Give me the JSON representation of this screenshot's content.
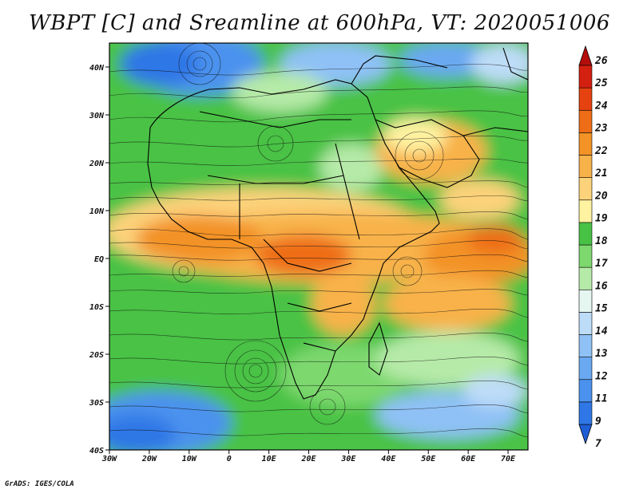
{
  "title": "WBPT [C] and Sreamline at 600hPa, VT: 2020051006",
  "credit": "GrADS: IGES/COLA",
  "map": {
    "lon_range": [
      -30,
      75
    ],
    "lat_range": [
      -40,
      45
    ],
    "lon_ticks": [
      {
        "value": -30,
        "label": "30W"
      },
      {
        "value": -20,
        "label": "20W"
      },
      {
        "value": -10,
        "label": "10W"
      },
      {
        "value": 0,
        "label": "0"
      },
      {
        "value": 10,
        "label": "10E"
      },
      {
        "value": 20,
        "label": "20E"
      },
      {
        "value": 30,
        "label": "30E"
      },
      {
        "value": 40,
        "label": "40E"
      },
      {
        "value": 50,
        "label": "50E"
      },
      {
        "value": 60,
        "label": "60E"
      },
      {
        "value": 70,
        "label": "70E"
      }
    ],
    "lat_ticks": [
      {
        "value": 40,
        "label": "40N"
      },
      {
        "value": 30,
        "label": "30N"
      },
      {
        "value": 20,
        "label": "20N"
      },
      {
        "value": 10,
        "label": "10N"
      },
      {
        "value": 0,
        "label": "EQ"
      },
      {
        "value": -10,
        "label": "10S"
      },
      {
        "value": -20,
        "label": "20S"
      },
      {
        "value": -30,
        "label": "30S"
      },
      {
        "value": -40,
        "label": "40S"
      }
    ]
  },
  "colorbar": {
    "labels": [
      "7",
      "9",
      "11",
      "12",
      "13",
      "14",
      "15",
      "16",
      "17",
      "18",
      "19",
      "20",
      "21",
      "22",
      "23",
      "24",
      "25",
      "26"
    ],
    "colors": [
      "#1f5fd6",
      "#2f77e6",
      "#4b92ee",
      "#6aa8f2",
      "#8fc1f6",
      "#bddcf8",
      "#e6f6f0",
      "#b6eaa8",
      "#7dd86e",
      "#48c245",
      "#fff2a0",
      "#fcd27a",
      "#f8b24a",
      "#f39226",
      "#ee6d17",
      "#e5420f",
      "#d42010",
      "#b40e0c"
    ]
  }
}
